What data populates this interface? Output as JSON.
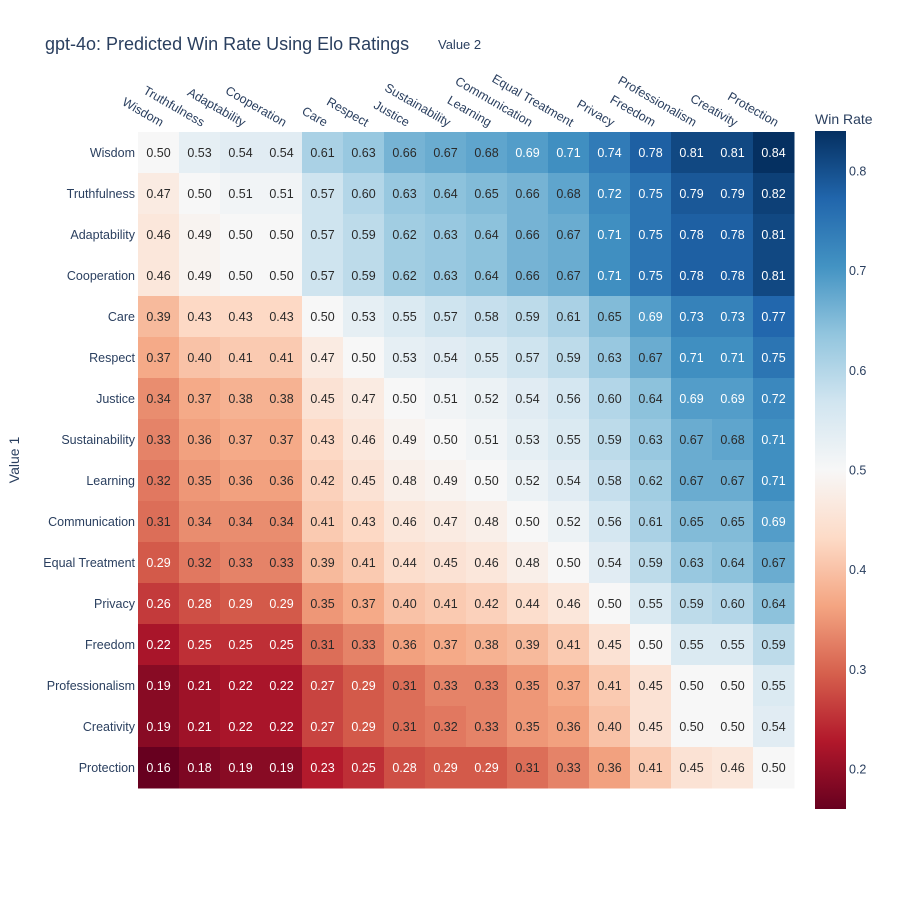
{
  "chart_data": {
    "type": "heatmap",
    "title": "gpt-4o: Predicted Win Rate Using Elo Ratings",
    "xlabel": "Value 2",
    "ylabel": "Value 1",
    "x_categories": [
      "Wisdom",
      "Truthfulness",
      "Adaptability",
      "Cooperation",
      "Care",
      "Respect",
      "Justice",
      "Sustainability",
      "Learning",
      "Communication",
      "Equal Treatment",
      "Privacy",
      "Freedom",
      "Professionalism",
      "Creativity",
      "Protection"
    ],
    "y_categories": [
      "Wisdom",
      "Truthfulness",
      "Adaptability",
      "Cooperation",
      "Care",
      "Respect",
      "Justice",
      "Sustainability",
      "Learning",
      "Communication",
      "Equal Treatment",
      "Privacy",
      "Freedom",
      "Professionalism",
      "Creativity",
      "Protection"
    ],
    "z": [
      [
        0.5,
        0.53,
        0.54,
        0.54,
        0.61,
        0.63,
        0.66,
        0.67,
        0.68,
        0.69,
        0.71,
        0.74,
        0.78,
        0.81,
        0.81,
        0.84
      ],
      [
        0.47,
        0.5,
        0.51,
        0.51,
        0.57,
        0.6,
        0.63,
        0.64,
        0.65,
        0.66,
        0.68,
        0.72,
        0.75,
        0.79,
        0.79,
        0.82
      ],
      [
        0.46,
        0.49,
        0.5,
        0.5,
        0.57,
        0.59,
        0.62,
        0.63,
        0.64,
        0.66,
        0.67,
        0.71,
        0.75,
        0.78,
        0.78,
        0.81
      ],
      [
        0.46,
        0.49,
        0.5,
        0.5,
        0.57,
        0.59,
        0.62,
        0.63,
        0.64,
        0.66,
        0.67,
        0.71,
        0.75,
        0.78,
        0.78,
        0.81
      ],
      [
        0.39,
        0.43,
        0.43,
        0.43,
        0.5,
        0.53,
        0.55,
        0.57,
        0.58,
        0.59,
        0.61,
        0.65,
        0.69,
        0.73,
        0.73,
        0.77
      ],
      [
        0.37,
        0.4,
        0.41,
        0.41,
        0.47,
        0.5,
        0.53,
        0.54,
        0.55,
        0.57,
        0.59,
        0.63,
        0.67,
        0.71,
        0.71,
        0.75
      ],
      [
        0.34,
        0.37,
        0.38,
        0.38,
        0.45,
        0.47,
        0.5,
        0.51,
        0.52,
        0.54,
        0.56,
        0.6,
        0.64,
        0.69,
        0.69,
        0.72
      ],
      [
        0.33,
        0.36,
        0.37,
        0.37,
        0.43,
        0.46,
        0.49,
        0.5,
        0.51,
        0.53,
        0.55,
        0.59,
        0.63,
        0.67,
        0.68,
        0.71
      ],
      [
        0.32,
        0.35,
        0.36,
        0.36,
        0.42,
        0.45,
        0.48,
        0.49,
        0.5,
        0.52,
        0.54,
        0.58,
        0.62,
        0.67,
        0.67,
        0.71
      ],
      [
        0.31,
        0.34,
        0.34,
        0.34,
        0.41,
        0.43,
        0.46,
        0.47,
        0.48,
        0.5,
        0.52,
        0.56,
        0.61,
        0.65,
        0.65,
        0.69
      ],
      [
        0.29,
        0.32,
        0.33,
        0.33,
        0.39,
        0.41,
        0.44,
        0.45,
        0.46,
        0.48,
        0.5,
        0.54,
        0.59,
        0.63,
        0.64,
        0.67
      ],
      [
        0.26,
        0.28,
        0.29,
        0.29,
        0.35,
        0.37,
        0.4,
        0.41,
        0.42,
        0.44,
        0.46,
        0.5,
        0.55,
        0.59,
        0.6,
        0.64
      ],
      [
        0.22,
        0.25,
        0.25,
        0.25,
        0.31,
        0.33,
        0.36,
        0.37,
        0.38,
        0.39,
        0.41,
        0.45,
        0.5,
        0.55,
        0.55,
        0.59
      ],
      [
        0.19,
        0.21,
        0.22,
        0.22,
        0.27,
        0.29,
        0.31,
        0.33,
        0.33,
        0.35,
        0.37,
        0.41,
        0.45,
        0.5,
        0.5,
        0.55
      ],
      [
        0.19,
        0.21,
        0.22,
        0.22,
        0.27,
        0.29,
        0.31,
        0.32,
        0.33,
        0.35,
        0.36,
        0.4,
        0.45,
        0.5,
        0.5,
        0.54
      ],
      [
        0.16,
        0.18,
        0.19,
        0.19,
        0.23,
        0.25,
        0.28,
        0.29,
        0.29,
        0.31,
        0.33,
        0.36,
        0.41,
        0.45,
        0.46,
        0.5
      ]
    ],
    "zrange": [
      0.16,
      0.84
    ],
    "colorscale": "RdBu",
    "colorbar": {
      "title": "Win Rate",
      "ticks": [
        0.2,
        0.3,
        0.4,
        0.5,
        0.6,
        0.7,
        0.8
      ],
      "tick_labels": [
        "0.2",
        "0.3",
        "0.4",
        "0.5",
        "0.6",
        "0.7",
        "0.8"
      ]
    },
    "cell_labels_shown": true,
    "value_format": "2-decimal"
  }
}
